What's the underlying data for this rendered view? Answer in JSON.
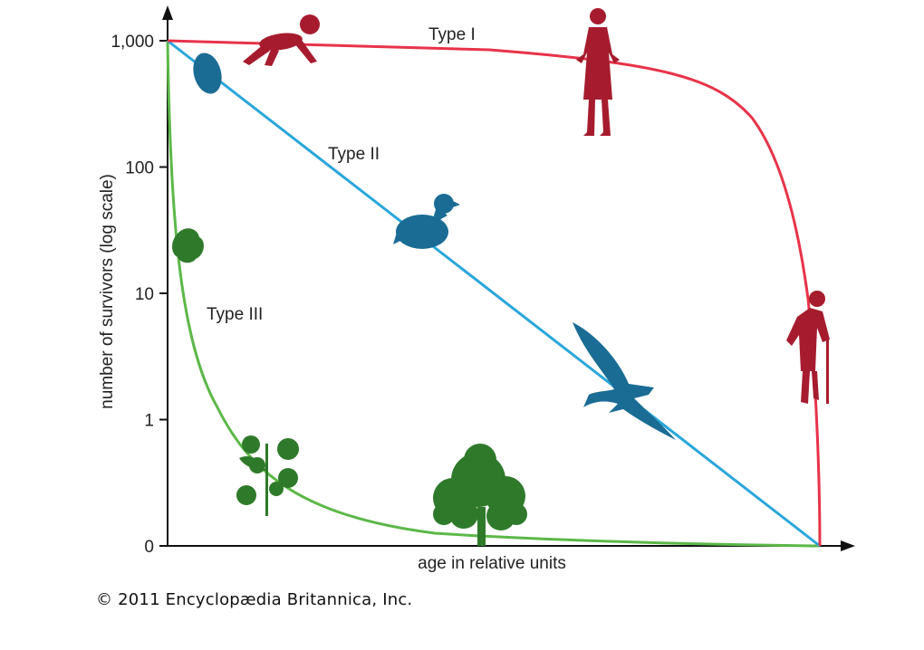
{
  "chart_data": {
    "type": "line",
    "title": "",
    "xlabel": "age in relative units",
    "ylabel": "number of survivors (log scale)",
    "y_scale": "log",
    "y_ticks": [
      "0",
      "1",
      "10",
      "100",
      "1,000"
    ],
    "x_ticks": [],
    "grid": false,
    "legend": "none",
    "series": [
      {
        "name": "Type I",
        "color": "#e8334a",
        "x": [
          0,
          0.2,
          0.4,
          0.6,
          0.65,
          0.7,
          0.75,
          0.8,
          0.85,
          0.88,
          0.92,
          0.96,
          0.99,
          1.0
        ],
        "y": [
          1000,
          990,
          960,
          900,
          850,
          780,
          650,
          500,
          300,
          150,
          50,
          10,
          1,
          0
        ]
      },
      {
        "name": "Type II",
        "color": "#2aa6dc",
        "x": [
          0,
          0.25,
          0.5,
          0.75,
          1.0
        ],
        "y": [
          1000,
          100,
          10,
          1,
          0
        ]
      },
      {
        "name": "Type III",
        "color": "#5cb848",
        "x": [
          0,
          0.01,
          0.02,
          0.04,
          0.06,
          0.1,
          0.15,
          0.25,
          0.4,
          0.6,
          0.8,
          1.0
        ],
        "y": [
          1000,
          200,
          50,
          10,
          3,
          0.8,
          0.3,
          0.12,
          0.05,
          0.02,
          0.01,
          0
        ]
      }
    ],
    "annotations": [
      {
        "series": "Type I",
        "text": "Type I",
        "icons": [
          "crawling-baby-icon",
          "standing-woman-icon",
          "elderly-person-icon"
        ]
      },
      {
        "series": "Type II",
        "text": "Type II",
        "icons": [
          "egg-icon",
          "bird-chick-icon",
          "eagle-icon"
        ]
      },
      {
        "series": "Type III",
        "text": "Type III",
        "icons": [
          "seed-icon",
          "seedling-icon",
          "tree-icon"
        ]
      }
    ]
  },
  "credit": "© 2011 Encyclopædia Britannica, Inc."
}
